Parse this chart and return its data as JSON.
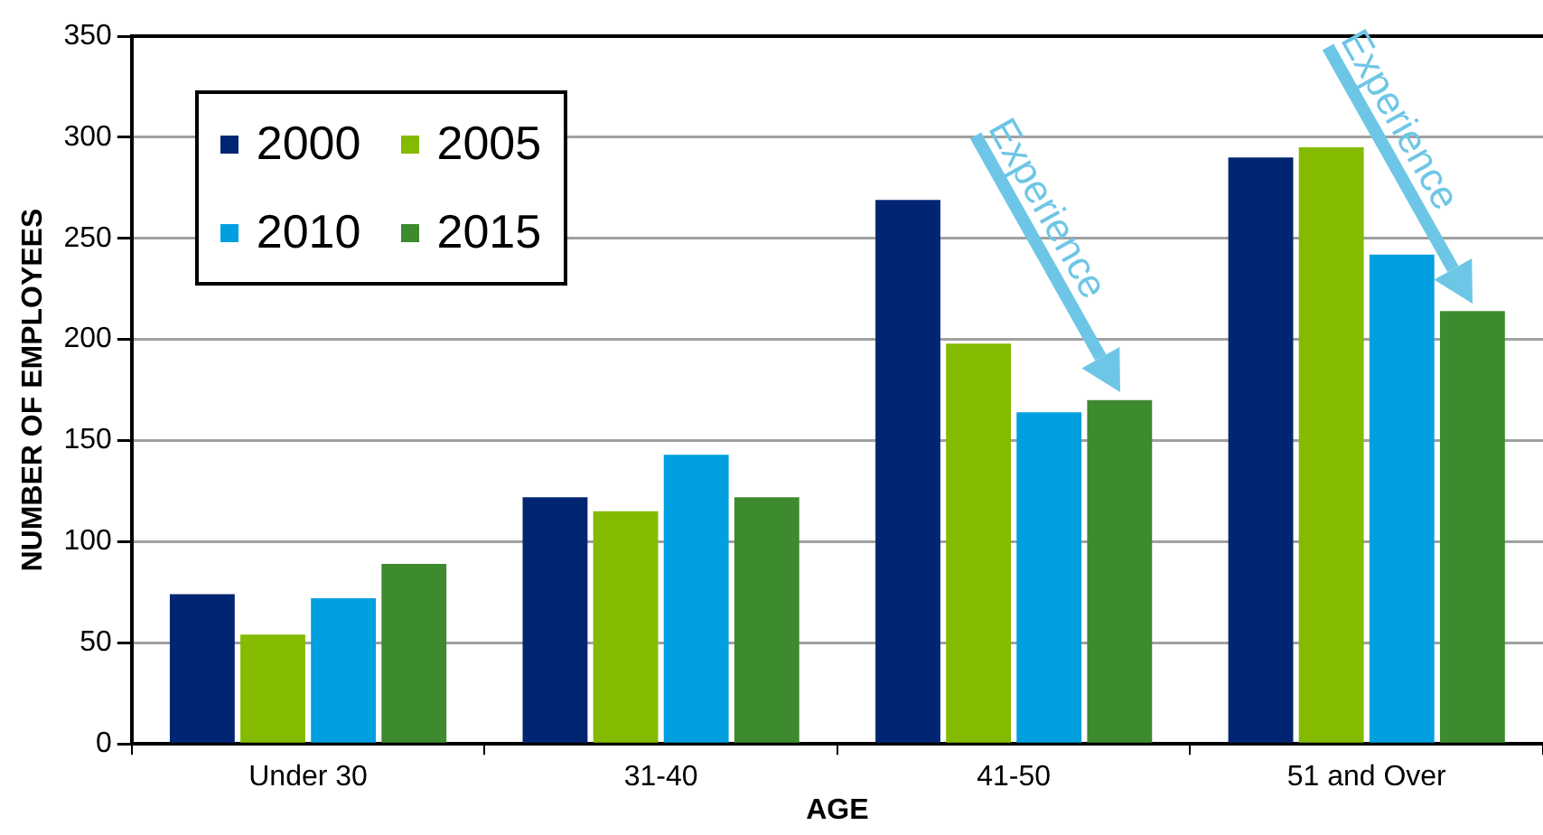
{
  "chart_data": {
    "type": "bar",
    "xlabel": "AGE",
    "ylabel": "NUMBER OF EMPLOYEES",
    "categories": [
      "Under 30",
      "31-40",
      "41-50",
      "51 and Over"
    ],
    "series": [
      {
        "name": "2000",
        "color": "#002673",
        "values": [
          74,
          122,
          269,
          290
        ]
      },
      {
        "name": "2005",
        "color": "#84bb00",
        "values": [
          54,
          115,
          198,
          295
        ]
      },
      {
        "name": "2010",
        "color": "#00a0e0",
        "values": [
          72,
          143,
          164,
          242
        ]
      },
      {
        "name": "2015",
        "color": "#3e8a2f",
        "values": [
          89,
          122,
          170,
          214
        ]
      }
    ],
    "ylim": [
      0,
      350
    ],
    "yticks": [
      0,
      50,
      100,
      150,
      200,
      250,
      300,
      350
    ],
    "grid": "y",
    "legend": "top left",
    "annotations": [
      "Experience",
      "Experience"
    ]
  }
}
